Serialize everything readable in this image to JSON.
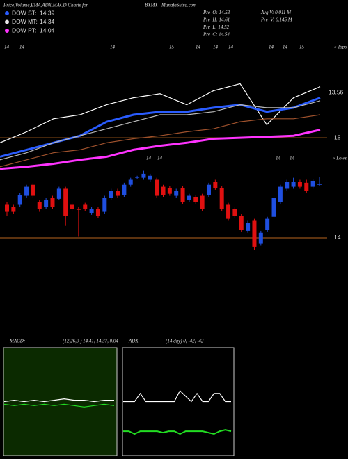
{
  "header": {
    "title": "Price,Volume,EMA,ADX,MACD Charts for",
    "symbol": "BXMX",
    "site": "MunafaSutra.com"
  },
  "legend": [
    {
      "label": "DOW ST:",
      "value": "14.39",
      "color": "#2a5cff"
    },
    {
      "label": "DOW MT:",
      "value": "14.34",
      "color": "#e8e8e8"
    },
    {
      "label": "DOW PT:",
      "value": "14.04",
      "color": "#ff33ff"
    }
  ],
  "stats": [
    [
      "Pre  O: 14.53",
      "Pre  H: 14.61",
      "Pre  L: 14.52",
      "Pre  C: 14.54"
    ],
    [
      "Avg V: 0.011 M",
      "Pre  V: 0.145 M"
    ]
  ],
  "top_labels": [
    "14",
    "14",
    "14",
    "15",
    "14",
    "14",
    "14",
    "14",
    "14",
    "15"
  ],
  "low_labels": [
    "14",
    "14",
    "14",
    "14"
  ],
  "tops_label": "« Tops",
  "lows_label": "« Lows",
  "price_label": "13.56",
  "chart_data": [
    {
      "type": "candlestick",
      "ylim": [
        13.11,
        15.96
      ],
      "yticks": [
        14,
        15
      ],
      "grid_color": "#b8651e",
      "up_color": "#1f4fe0",
      "down_color": "#e01010",
      "open": [
        14.33,
        14.31,
        14.33,
        14.42,
        14.53,
        14.36,
        14.31,
        14.4,
        14.39,
        14.49,
        14.33,
        14.29,
        14.33,
        14.25,
        14.29,
        14.26,
        14.4,
        14.47,
        14.43,
        14.53,
        14.6,
        14.6,
        14.58,
        14.58,
        14.51,
        14.5,
        14.42,
        14.5,
        14.38,
        14.41,
        14.42,
        14.43,
        14.56,
        14.5,
        14.33,
        14.29,
        14.22,
        14.07,
        14.17,
        13.94,
        14.08,
        14.21,
        14.36,
        14.49,
        14.51,
        14.56,
        14.55,
        14.51,
        14.53
      ],
      "high": [
        14.36,
        14.33,
        14.45,
        14.53,
        14.55,
        14.38,
        14.4,
        14.42,
        14.51,
        14.51,
        14.36,
        14.31,
        14.35,
        14.31,
        14.31,
        14.42,
        14.49,
        14.49,
        14.55,
        14.6,
        14.62,
        14.67,
        14.64,
        14.6,
        14.53,
        14.52,
        14.49,
        14.52,
        14.44,
        14.43,
        14.44,
        14.55,
        14.58,
        14.52,
        14.35,
        14.31,
        14.24,
        14.17,
        14.19,
        14.07,
        14.21,
        14.42,
        14.53,
        14.58,
        14.6,
        14.58,
        14.58,
        14.59,
        14.61
      ],
      "low": [
        14.22,
        14.24,
        14.31,
        14.4,
        14.4,
        14.26,
        14.29,
        14.29,
        14.38,
        14.12,
        14.26,
        14.01,
        14.27,
        14.23,
        14.2,
        14.24,
        14.38,
        14.4,
        14.41,
        14.51,
        14.59,
        14.58,
        14.56,
        14.4,
        14.41,
        14.42,
        14.4,
        14.34,
        14.36,
        14.34,
        14.27,
        14.41,
        14.48,
        14.27,
        14.17,
        14.2,
        14.06,
        14.05,
        13.88,
        13.92,
        14.06,
        14.19,
        14.34,
        14.47,
        14.49,
        14.49,
        14.45,
        14.49,
        14.52
      ],
      "close": [
        14.26,
        14.26,
        14.43,
        14.51,
        14.42,
        14.29,
        14.38,
        14.31,
        14.49,
        14.22,
        14.29,
        14.28,
        14.29,
        14.29,
        14.22,
        14.4,
        14.47,
        14.42,
        14.53,
        14.58,
        14.61,
        14.64,
        14.62,
        14.42,
        14.43,
        14.44,
        14.47,
        14.36,
        14.42,
        14.36,
        14.29,
        14.53,
        14.5,
        14.29,
        14.19,
        14.22,
        14.08,
        14.15,
        13.91,
        14.05,
        14.19,
        14.4,
        14.51,
        14.56,
        14.56,
        14.51,
        14.47,
        14.57,
        14.54
      ],
      "series": [
        {
          "color": "#ffffff",
          "width": 1.2,
          "values": [
            14.95,
            15.06,
            15.19,
            15.23,
            15.33,
            15.4,
            15.44,
            15.33,
            15.47,
            15.54,
            15.13,
            15.4,
            15.51
          ]
        },
        {
          "color": "#2a5cff",
          "width": 3,
          "values": [
            14.81,
            14.88,
            14.95,
            15.02,
            15.16,
            15.23,
            15.26,
            15.26,
            15.3,
            15.33,
            15.26,
            15.3,
            15.4
          ]
        },
        {
          "color": "#bbbbbb",
          "width": 1.2,
          "values": [
            14.78,
            14.85,
            14.95,
            15.02,
            15.09,
            15.16,
            15.23,
            15.23,
            15.26,
            15.33,
            15.3,
            15.3,
            15.37
          ]
        },
        {
          "color": "#a0522d",
          "width": 1.2,
          "values": [
            14.71,
            14.78,
            14.85,
            14.88,
            14.95,
            14.99,
            15.02,
            15.06,
            15.09,
            15.16,
            15.19,
            15.19,
            15.23
          ]
        },
        {
          "color": "#ff33ff",
          "width": 3,
          "values": [
            14.69,
            14.71,
            14.74,
            14.78,
            14.81,
            14.88,
            14.92,
            14.95,
            14.99,
            15.0,
            15.01,
            15.02,
            15.08
          ]
        }
      ]
    },
    {
      "type": "line",
      "label": "MACD:",
      "params": "(12,26,9 ) 14.41, 14.37, 0.04",
      "background": "#0b2a00",
      "ylim": [
        14.0,
        14.8
      ],
      "series": [
        {
          "color": "#ffffff",
          "values": [
            14.4,
            14.41,
            14.4,
            14.41,
            14.4,
            14.41,
            14.42,
            14.41,
            14.41,
            14.4,
            14.41,
            14.41
          ]
        },
        {
          "color": "#22dd22",
          "values": [
            14.38,
            14.37,
            14.38,
            14.37,
            14.38,
            14.37,
            14.38,
            14.37,
            14.36,
            14.37,
            14.38,
            14.37
          ]
        }
      ]
    },
    {
      "type": "line",
      "label": "ADX",
      "params": "(14 day) 0, -42, -42",
      "background": "#000000",
      "ylim": [
        -60,
        20
      ],
      "series": [
        {
          "color": "#ffffff",
          "values": [
            -20,
            -20,
            -20,
            -14,
            -20,
            -20,
            -20,
            -20,
            -20,
            -20,
            -12,
            -16,
            -20,
            -14,
            -20,
            -20,
            -14,
            -14,
            -20,
            -20
          ]
        },
        {
          "color": "#22dd22",
          "values": [
            -42,
            -42,
            -44,
            -42,
            -42,
            -42,
            -42,
            -43,
            -42,
            -42,
            -44,
            -42,
            -42,
            -42,
            -42,
            -43,
            -44,
            -42,
            -41,
            -42
          ]
        }
      ]
    }
  ]
}
